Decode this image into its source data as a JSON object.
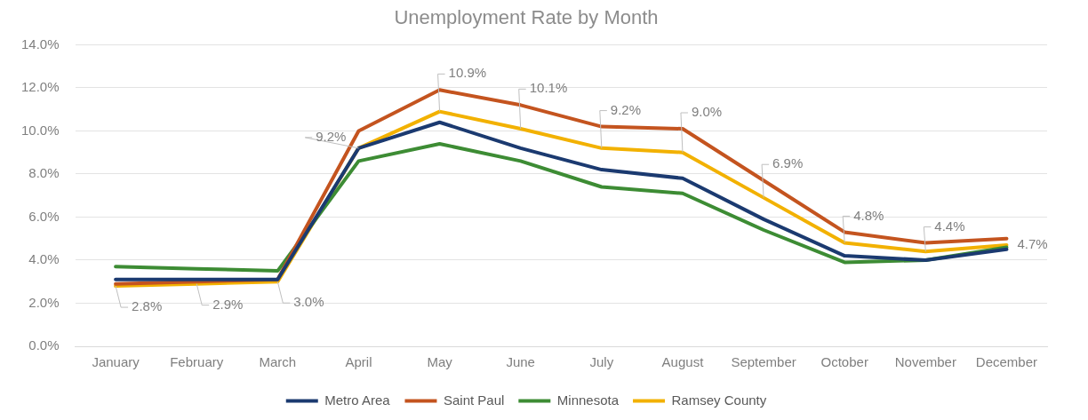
{
  "chart_data": {
    "type": "line",
    "title": "Unemployment Rate by Month",
    "categories": [
      "January",
      "February",
      "March",
      "April",
      "May",
      "June",
      "July",
      "August",
      "September",
      "October",
      "November",
      "December"
    ],
    "series": [
      {
        "name": "Metro Area",
        "color": "#1b3a70",
        "values": [
          3.1,
          3.1,
          3.1,
          9.2,
          10.4,
          9.2,
          8.2,
          7.8,
          5.9,
          4.2,
          4.0,
          4.5
        ]
      },
      {
        "name": "Saint Paul",
        "color": "#c4541f",
        "values": [
          2.9,
          3.0,
          3.1,
          10.0,
          11.9,
          11.2,
          10.2,
          10.1,
          7.7,
          5.3,
          4.8,
          5.0
        ]
      },
      {
        "name": "Minnesota",
        "color": "#3d8c34",
        "values": [
          3.7,
          3.6,
          3.5,
          8.6,
          9.4,
          8.6,
          7.4,
          7.1,
          5.4,
          3.9,
          4.0,
          4.6
        ]
      },
      {
        "name": "Ramsey County",
        "color": "#f2b100",
        "values": [
          2.8,
          2.9,
          3.0,
          9.2,
          10.9,
          10.1,
          9.2,
          9.0,
          6.9,
          4.8,
          4.4,
          4.7
        ],
        "value_labels": [
          "2.8%",
          "2.9%",
          "3.0%",
          "9.2%",
          "10.9%",
          "10.1%",
          "9.2%",
          "9.0%",
          "6.9%",
          "4.8%",
          "4.4%",
          "4.7%"
        ]
      }
    ],
    "ylim": [
      0,
      14
    ],
    "yticks": [
      {
        "value": 0,
        "label": "0.0%"
      },
      {
        "value": 2,
        "label": "2.0%"
      },
      {
        "value": 4,
        "label": "4.0%"
      },
      {
        "value": 6,
        "label": "6.0%"
      },
      {
        "value": 8,
        "label": "8.0%"
      },
      {
        "value": 10,
        "label": "10.0%"
      },
      {
        "value": 12,
        "label": "12.0%"
      },
      {
        "value": 14,
        "label": "14.0%"
      }
    ],
    "grid": "y",
    "legend": "bottom",
    "marker": "none",
    "line_style": "solid"
  }
}
